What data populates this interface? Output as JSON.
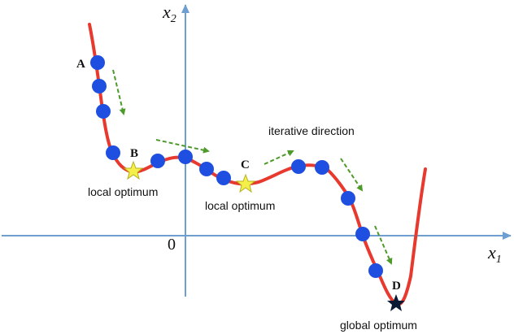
{
  "axes": {
    "x_label": "x",
    "x_sub": "1",
    "y_label": "x",
    "y_sub": "2",
    "origin_label": "0"
  },
  "point_labels": {
    "a": "A",
    "b": "B",
    "c": "C",
    "d": "D"
  },
  "annotations": {
    "local_b": "local optimum",
    "local_c": "local optimum",
    "global_d": "global optimum",
    "direction": "iterative direction"
  },
  "colors": {
    "axis": "#6f9fd0",
    "curve": "#e8392f",
    "dot": "#1f4fe0",
    "star_local": "#f5ef4a",
    "star_global": "#0a1a33",
    "arrow": "#4d9a2a"
  }
}
